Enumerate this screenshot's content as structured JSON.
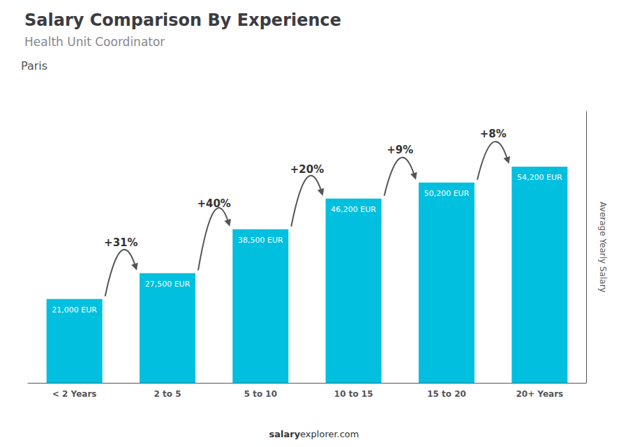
{
  "chart_data": {
    "type": "bar",
    "title": "Salary Comparison By Experience",
    "subtitle": "Health Unit Coordinator",
    "annotations": [
      "Paris",
      "salary",
      "explorer.com"
    ],
    "categories": [
      "< 2 Years",
      "2 to 5",
      "5 to 10",
      "10 to 15",
      "15 to 20",
      "20+ Years"
    ],
    "values": [
      21000,
      27500,
      38500,
      46200,
      50200,
      54200
    ],
    "value_labels": [
      "21,000 EUR",
      "27,500 EUR",
      "38,500 EUR",
      "46,200 EUR",
      "50,200 EUR",
      "54,200 EUR"
    ],
    "change_labels": [
      "+31%",
      "+40%",
      "+20%",
      "+9%",
      "+8%"
    ],
    "ylabel": "Average Yearly Salary",
    "color": "#00bfdf",
    "ylim": [
      0,
      68000
    ],
    "grid": false,
    "tick_labels": "x",
    "data_labels": true
  }
}
